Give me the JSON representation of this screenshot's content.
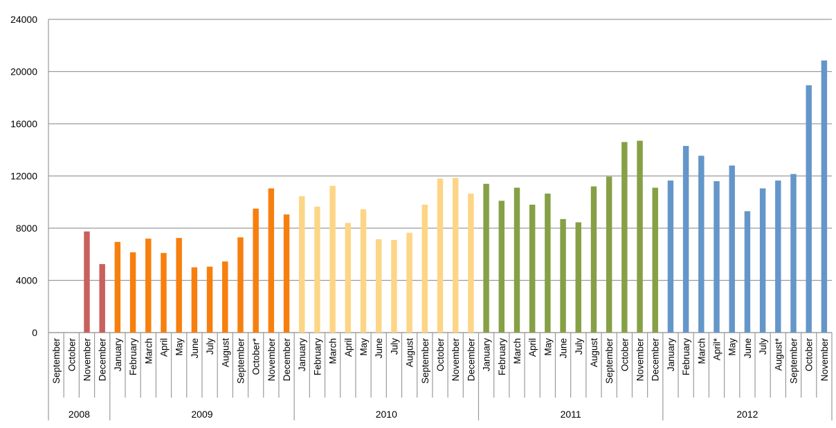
{
  "chart_data": {
    "type": "bar",
    "ylim": [
      0,
      24000
    ],
    "yticks": [
      0,
      4000,
      8000,
      12000,
      16000,
      20000,
      24000
    ],
    "ytick_labels": [
      "0",
      "4000",
      "8000",
      "12000",
      "16000",
      "20000",
      "24000"
    ],
    "grid": true,
    "legend": "none",
    "groups": [
      {
        "year": "2008",
        "color": "#c9605d",
        "months": [
          "September",
          "October",
          "November",
          "December"
        ],
        "values": [
          null,
          null,
          7750,
          5250
        ]
      },
      {
        "year": "2009",
        "color": "#f77f0e",
        "months": [
          "January",
          "February",
          "March",
          "April",
          "May",
          "June",
          "July",
          "August",
          "September",
          "October*",
          "November",
          "December"
        ],
        "values": [
          6950,
          6150,
          7200,
          6100,
          7250,
          5000,
          5050,
          5450,
          7300,
          9500,
          11050,
          9050
        ]
      },
      {
        "year": "2010",
        "color": "#fdd586",
        "months": [
          "January",
          "February",
          "March",
          "April",
          "May",
          "June",
          "July",
          "August",
          "September",
          "October",
          "November",
          "December"
        ],
        "values": [
          10450,
          9650,
          11250,
          8400,
          9450,
          7150,
          7100,
          7650,
          9800,
          11800,
          11850,
          10650
        ]
      },
      {
        "year": "2011",
        "color": "#86a046",
        "months": [
          "January",
          "February",
          "March",
          "April",
          "May",
          "June",
          "July",
          "August",
          "September",
          "October",
          "November",
          "December"
        ],
        "values": [
          11400,
          10100,
          11100,
          9800,
          10650,
          8700,
          8450,
          11200,
          11950,
          14600,
          14700,
          11100
        ]
      },
      {
        "year": "2012",
        "color": "#6496c9",
        "months": [
          "January",
          "February",
          "March",
          "April*",
          "May",
          "June",
          "July",
          "August*",
          "September",
          "October",
          "November"
        ],
        "values": [
          11650,
          14300,
          13550,
          11600,
          12800,
          9300,
          11050,
          11650,
          12150,
          18950,
          20850
        ]
      }
    ]
  }
}
